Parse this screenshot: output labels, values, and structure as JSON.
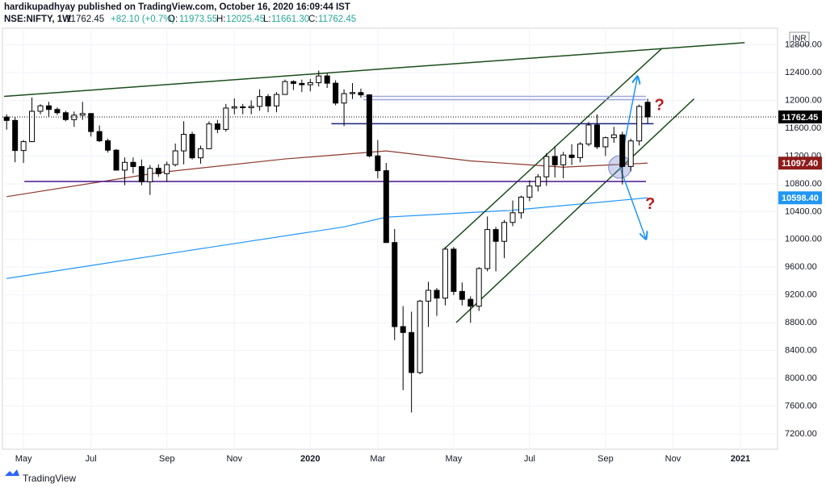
{
  "header": {
    "byline": "hardikupadhyay published on TradingView.com, October 16, 2020 16:09:44 IST",
    "symbol": "NSE:NIFTY, 1W",
    "last": "11762.45",
    "change": "+82.10 (+0.7%)",
    "o_label": "O:",
    "o": "11973.55",
    "h_label": "H:",
    "h": "12025.45",
    "l_label": "L:",
    "l": "11661.30",
    "c_label": "C:",
    "c": "11762.45",
    "currency": "INR",
    "brand": "TradingView"
  },
  "chart_data": {
    "type": "candlestick",
    "categories": [
      null,
      null,
      "May",
      null,
      null,
      null,
      null,
      null,
      null,
      null,
      "Jul",
      null,
      null,
      null,
      null,
      null,
      null,
      null,
      null,
      "Sep",
      null,
      null,
      null,
      null,
      null,
      null,
      null,
      "Nov",
      null,
      null,
      null,
      null,
      null,
      null,
      null,
      null,
      "2020",
      null,
      null,
      null,
      null,
      null,
      null,
      null,
      "Mar",
      null,
      null,
      null,
      null,
      null,
      null,
      null,
      null,
      "May",
      null,
      null,
      null,
      null,
      null,
      null,
      null,
      null,
      "Jul",
      null,
      null,
      null,
      null,
      null,
      null,
      null,
      null,
      "Sep",
      null,
      null,
      null,
      null,
      null,
      null,
      null,
      "Nov",
      null,
      null,
      null,
      null,
      null,
      null,
      null,
      "2021",
      null,
      null,
      null,
      null
    ],
    "open": [
      11760,
      11712,
      11279,
      11407,
      11844,
      11922,
      11870,
      11823,
      11724,
      11788,
      11811,
      11552,
      11419,
      11284,
      10997,
      11109,
      11048,
      10829,
      11023,
      10946,
      11076,
      11274,
      11512,
      11174,
      11305,
      11662,
      11584,
      11890,
      11908,
      11895,
      11914,
      12056,
      11921,
      12086,
      12271,
      12245,
      12226,
      12256,
      12352,
      12248,
      11962,
      12098,
      12113,
      12080,
      11202,
      10989,
      9955,
      8745,
      8660,
      8084,
      9112,
      9267,
      9155,
      9860,
      9251,
      9137,
      9039,
      9580,
      10142,
      9972,
      10244,
      10383,
      10608,
      10768,
      10901,
      11194,
      11073,
      11214,
      11178,
      11372,
      11647,
      11333,
      11464,
      11505,
      11050,
      11417,
      11973.55,
      null,
      null,
      null,
      null,
      null,
      null,
      null,
      null,
      null,
      null,
      null,
      null,
      null,
      null,
      null
    ],
    "high": [
      11800,
      11760,
      11430,
      12041,
      11945,
      11980,
      11900,
      11850,
      11840,
      11980,
      11820,
      11640,
      11450,
      11300,
      11180,
      11180,
      11150,
      11070,
      11080,
      11120,
      11380,
      11700,
      11550,
      11350,
      11700,
      11720,
      11950,
      12030,
      11950,
      12000,
      12160,
      12090,
      12120,
      12300,
      12290,
      12300,
      12310,
      12430,
      12390,
      12290,
      12160,
      12250,
      12170,
      12090,
      11430,
      11100,
      10150,
      9040,
      8960,
      9130,
      9390,
      9300,
      9890,
      9890,
      9380,
      9180,
      9600,
      10330,
      10180,
      10280,
      10560,
      10630,
      10850,
      10940,
      11240,
      11340,
      11260,
      11370,
      11400,
      11690,
      11800,
      11480,
      11620,
      11550,
      11450,
      11940,
      12025.45,
      null,
      null,
      null,
      null,
      null,
      null,
      null,
      null,
      null,
      null,
      null,
      null,
      null,
      null,
      null
    ],
    "low": [
      11580,
      11110,
      11100,
      11400,
      11800,
      11770,
      11790,
      11700,
      11620,
      11720,
      11480,
      11400,
      11250,
      10990,
      10780,
      10950,
      10780,
      10640,
      10900,
      10830,
      11050,
      11080,
      11150,
      11090,
      11300,
      11530,
      11550,
      11800,
      11800,
      11800,
      11850,
      11830,
      11830,
      12080,
      12150,
      12120,
      12130,
      12200,
      12180,
      11930,
      11630,
      12020,
      12040,
      11180,
      10880,
      9950,
      8550,
      7830,
      7510,
      8060,
      8740,
      8900,
      9050,
      9200,
      9050,
      8800,
      8970,
      9540,
      9540,
      9730,
      10190,
      10300,
      10550,
      10690,
      10770,
      10890,
      10880,
      11070,
      11110,
      11340,
      11300,
      11200,
      11390,
      10790,
      10980,
      11350,
      11661.3,
      null,
      null,
      null,
      null,
      null,
      null,
      null,
      null,
      null,
      null,
      null,
      null,
      null,
      null,
      null
    ],
    "close": [
      11712,
      11279,
      11407,
      11844,
      11922,
      11870,
      11823,
      11724,
      11788,
      11811,
      11552,
      11419,
      11284,
      10997,
      11109,
      11048,
      10829,
      11023,
      10946,
      11076,
      11274,
      11512,
      11174,
      11305,
      11662,
      11584,
      11890,
      11908,
      11895,
      11914,
      12056,
      11921,
      12086,
      12271,
      12245,
      12226,
      12256,
      12352,
      12248,
      11962,
      12098,
      12113,
      12080,
      11202,
      10989,
      9955,
      8745,
      8660,
      8084,
      9112,
      9267,
      9155,
      9860,
      9251,
      9137,
      9039,
      9580,
      10142,
      9972,
      10244,
      10383,
      10608,
      10768,
      10901,
      11194,
      11073,
      11214,
      11178,
      11372,
      11647,
      11333,
      11464,
      11505,
      11050,
      11417,
      11914,
      11762.45,
      null,
      null,
      null,
      null,
      null,
      null,
      null,
      null,
      null,
      null,
      null,
      null,
      null,
      null,
      null
    ],
    "up_color": "#ffffff",
    "down_color": "#000000",
    "xlim": [
      -0.5,
      91.4
    ],
    "ylim": [
      6980,
      13039
    ],
    "yticks": [
      {
        "value": 7200,
        "label": "7200.00"
      },
      {
        "value": 7600,
        "label": "7600.00"
      },
      {
        "value": 8000,
        "label": "8000.00"
      },
      {
        "value": 8400,
        "label": "8400.00"
      },
      {
        "value": 8800,
        "label": "8800.00"
      },
      {
        "value": 9200,
        "label": "9200.00"
      },
      {
        "value": 9600,
        "label": "9600.00"
      },
      {
        "value": 10000,
        "label": "10000.00"
      },
      {
        "value": 10400,
        "label": "10400.00"
      },
      {
        "value": 10800,
        "label": "10800.00"
      },
      {
        "value": 11200,
        "label": "11200.00"
      },
      {
        "value": 11600,
        "label": "11600.00"
      },
      {
        "value": 12000,
        "label": "12000.00"
      },
      {
        "value": 12400,
        "label": "12400.00"
      },
      {
        "value": 12800,
        "label": "12800.00"
      }
    ],
    "grid": true,
    "overlays": [
      {
        "color": "#8d3a2e",
        "x": [
          0,
          18,
          33,
          45,
          55,
          66,
          76
        ],
        "values": [
          10615,
          10961,
          11158,
          11273,
          11130,
          11040,
          11097.4
        ]
      },
      {
        "color": "#2196f3",
        "x": [
          0,
          20,
          40,
          45,
          60,
          76
        ],
        "values": [
          9438,
          9810,
          10180,
          10320,
          10420,
          10598.4
        ]
      }
    ],
    "price_tags": [
      {
        "value": 11762.45,
        "label": "11762.45",
        "color": "#000000"
      },
      {
        "value": 11097.4,
        "label": "11097.40",
        "color": "#8d1c1c"
      },
      {
        "value": 10598.4,
        "label": "10598.40",
        "color": "#2196f3"
      }
    ],
    "drawings": [
      {
        "color": "#1b4d1b",
        "x": [
          -0.3,
          87.5
        ],
        "y": [
          12058,
          12831
        ]
      },
      {
        "color": "#1b4d1b",
        "x": [
          51.9,
          77.7
        ],
        "y": [
          9865,
          12750
        ]
      },
      {
        "color": "#1b4d1b",
        "x": [
          53.3,
          81.5
        ],
        "y": [
          8803,
          12023
        ]
      },
      {
        "color": "#4a148c",
        "x": [
          2.1,
          75.8
        ],
        "y": [
          10834,
          10834
        ]
      },
      {
        "color": "#1a237e",
        "x": [
          38.5,
          76.7
        ],
        "y": [
          11665,
          11665
        ]
      },
      {
        "color": "#9fa8da",
        "x": [
          42.3,
          75.8
        ],
        "y": [
          12058,
          12058
        ]
      },
      {
        "color": "#9fa8da",
        "x": [
          42.3,
          75.8
        ],
        "y": [
          12012,
          12012
        ]
      },
      {
        "color": "#2196f3",
        "x": [
          72.7,
          74.8
        ],
        "y": [
          11042,
          12346
        ],
        "arrow": true
      },
      {
        "color": "#2196f3",
        "x": [
          72.7,
          75.8
        ],
        "y": [
          11042,
          10004
        ],
        "arrow": true
      }
    ],
    "circle": {
      "x": 72.7,
      "y": 11042,
      "color": "#7986cb"
    },
    "annotations": [
      {
        "text": "?",
        "x": 77.4,
        "y": 11920,
        "color": "#b71c1c"
      },
      {
        "text": "?",
        "x": 76.3,
        "y": 10500,
        "color": "#b71c1c"
      }
    ]
  }
}
